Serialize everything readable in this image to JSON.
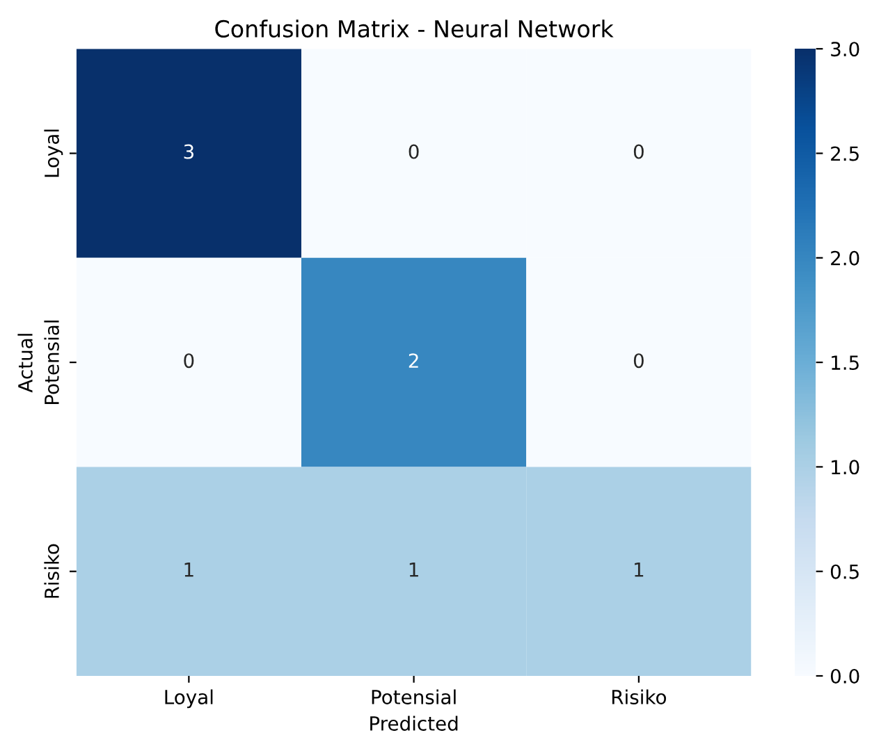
{
  "chart_data": {
    "type": "heatmap",
    "title": "Confusion Matrix - Neural Network",
    "xlabel": "Predicted",
    "ylabel": "Actual",
    "categories": [
      "Loyal",
      "Potensial",
      "Risiko"
    ],
    "y_categories": [
      "Loyal",
      "Potensial",
      "Risiko"
    ],
    "cells": [
      [
        3,
        0,
        0
      ],
      [
        0,
        2,
        0
      ],
      [
        1,
        1,
        1
      ]
    ],
    "clim": [
      0,
      3
    ],
    "cticks": [
      {
        "value": 0,
        "label": "0.0"
      },
      {
        "value": 0.5,
        "label": "0.5"
      },
      {
        "value": 1,
        "label": "1.0"
      },
      {
        "value": 1.5,
        "label": "1.5"
      },
      {
        "value": 2,
        "label": "2.0"
      },
      {
        "value": 2.5,
        "label": "2.5"
      },
      {
        "value": 3,
        "label": "3.0"
      }
    ],
    "data_labels": true
  }
}
